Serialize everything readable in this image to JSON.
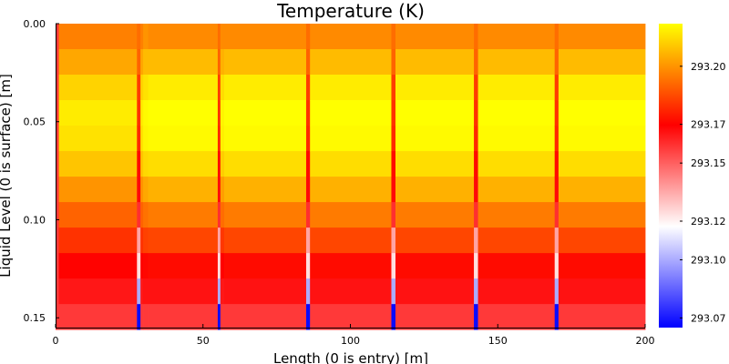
{
  "chart_data": {
    "type": "heatmap",
    "title": "Temperature (K)",
    "xlabel": "Length (0 is entry) [m]",
    "ylabel": "Liquid Level (0 is surface) [m]",
    "xlim": [
      0,
      200
    ],
    "ylim": [
      0,
      0.155
    ],
    "xticks": [
      "0",
      "50",
      "100",
      "150",
      "200"
    ],
    "yticks": [
      "0.00",
      "0.05",
      "0.10",
      "0.15"
    ],
    "colorbar_ticks": [
      "293.07",
      "293.10",
      "293.12",
      "293.15",
      "293.17",
      "293.20"
    ],
    "colorbar_range": [
      293.065,
      293.222
    ],
    "colormap": [
      "#0000ff",
      "#ffffff",
      "#ff0000",
      "#ffff00"
    ],
    "x_edges": [
      0,
      1.1,
      27.6,
      28.8,
      29.7,
      31.4,
      55.0,
      55.9,
      57.2,
      85.0,
      86.3,
      113.9,
      115.3,
      141.9,
      143.3,
      169.3,
      170.6,
      200
    ],
    "depths": [
      0.0,
      0.013,
      0.026,
      0.039,
      0.052,
      0.065,
      0.078,
      0.091,
      0.104,
      0.117,
      0.13,
      0.143
    ],
    "column_values": [
      [
        293.158,
        293.158,
        293.158,
        293.158,
        293.158,
        293.158,
        293.158,
        293.158,
        293.158,
        293.158,
        293.158,
        293.158
      ],
      [
        293.196,
        293.204,
        293.213,
        293.218,
        293.216,
        293.21,
        293.2,
        293.19,
        293.18,
        293.17,
        293.165,
        293.158
      ],
      [
        293.192,
        293.19,
        293.182,
        293.18,
        293.178,
        293.172,
        293.168,
        293.16,
        293.136,
        293.124,
        293.1,
        293.067
      ],
      [
        293.196,
        293.204,
        293.213,
        293.218,
        293.216,
        293.21,
        293.2,
        293.19,
        293.18,
        293.17,
        293.165,
        293.158
      ],
      [
        293.2,
        293.208,
        293.216,
        293.221,
        293.22,
        293.214,
        293.204,
        293.193,
        293.183,
        293.171,
        293.166,
        293.158
      ],
      [
        293.198,
        293.208,
        293.218,
        293.222,
        293.221,
        293.215,
        293.206,
        293.195,
        293.184,
        293.172,
        293.166,
        293.158
      ],
      [
        293.192,
        293.19,
        293.182,
        293.18,
        293.178,
        293.172,
        293.168,
        293.16,
        293.136,
        293.124,
        293.1,
        293.067
      ],
      [
        293.198,
        293.206,
        293.215,
        293.22,
        293.219,
        293.212,
        293.202,
        293.192,
        293.181,
        293.17,
        293.165,
        293.158
      ],
      [
        293.198,
        293.208,
        293.218,
        293.222,
        293.221,
        293.215,
        293.206,
        293.195,
        293.184,
        293.172,
        293.166,
        293.158
      ],
      [
        293.192,
        293.19,
        293.182,
        293.18,
        293.178,
        293.172,
        293.168,
        293.16,
        293.136,
        293.124,
        293.1,
        293.067
      ],
      [
        293.198,
        293.208,
        293.218,
        293.222,
        293.221,
        293.215,
        293.206,
        293.195,
        293.184,
        293.172,
        293.166,
        293.158
      ],
      [
        293.192,
        293.19,
        293.182,
        293.18,
        293.178,
        293.172,
        293.168,
        293.16,
        293.136,
        293.124,
        293.1,
        293.067
      ],
      [
        293.198,
        293.208,
        293.218,
        293.222,
        293.221,
        293.215,
        293.206,
        293.195,
        293.184,
        293.172,
        293.166,
        293.158
      ],
      [
        293.192,
        293.19,
        293.182,
        293.18,
        293.178,
        293.172,
        293.168,
        293.16,
        293.136,
        293.124,
        293.1,
        293.067
      ],
      [
        293.198,
        293.208,
        293.218,
        293.222,
        293.221,
        293.215,
        293.206,
        293.195,
        293.184,
        293.172,
        293.166,
        293.158
      ],
      [
        293.192,
        293.19,
        293.182,
        293.18,
        293.178,
        293.172,
        293.168,
        293.16,
        293.136,
        293.124,
        293.1,
        293.067
      ],
      [
        293.198,
        293.208,
        293.218,
        293.222,
        293.221,
        293.215,
        293.206,
        293.195,
        293.184,
        293.172,
        293.166,
        293.158
      ]
    ]
  }
}
